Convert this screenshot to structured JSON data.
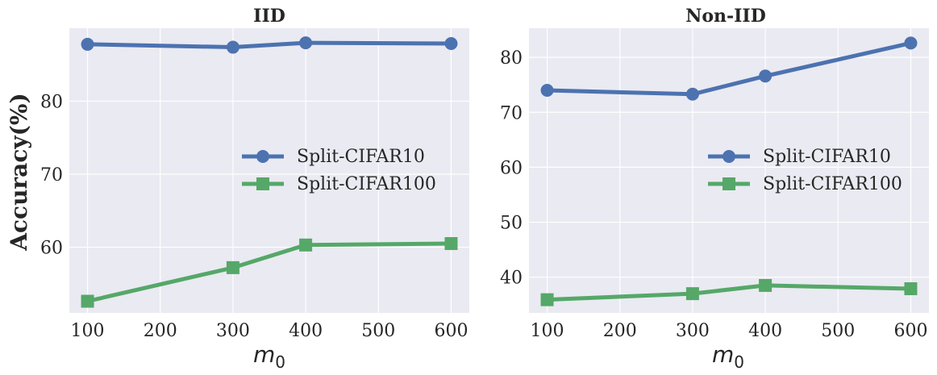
{
  "chart_data": [
    {
      "type": "line",
      "title": "IID",
      "xlabel": "m",
      "xlabel_sub": "0",
      "ylabel": "Accuracy(%)",
      "xlim": [
        75,
        625
      ],
      "ylim": [
        51,
        90
      ],
      "xticks": [
        100,
        200,
        300,
        400,
        500,
        600
      ],
      "yticks": [
        60,
        70,
        80
      ],
      "legend_position": "center-right",
      "series": [
        {
          "name": "Split-CIFAR10",
          "color": "#4C72B0",
          "marker": "circle",
          "x": [
            100,
            300,
            400,
            600
          ],
          "y": [
            87.8,
            87.4,
            88.0,
            87.9
          ]
        },
        {
          "name": "Split-CIFAR100",
          "color": "#55A868",
          "marker": "square",
          "x": [
            100,
            300,
            400,
            600
          ],
          "y": [
            52.6,
            57.2,
            60.3,
            60.5
          ]
        }
      ]
    },
    {
      "type": "line",
      "title": "Non-IID",
      "xlabel": "m",
      "xlabel_sub": "0",
      "ylabel": "",
      "xlim": [
        75,
        625
      ],
      "ylim": [
        33.5,
        85.3
      ],
      "xticks": [
        100,
        200,
        300,
        400,
        500,
        600
      ],
      "yticks": [
        40,
        50,
        60,
        70,
        80
      ],
      "legend_position": "center-right",
      "series": [
        {
          "name": "Split-CIFAR10",
          "color": "#4C72B0",
          "marker": "circle",
          "x": [
            100,
            300,
            400,
            600
          ],
          "y": [
            74.0,
            73.3,
            76.6,
            82.6
          ]
        },
        {
          "name": "Split-CIFAR100",
          "color": "#55A868",
          "marker": "square",
          "x": [
            100,
            300,
            400,
            600
          ],
          "y": [
            35.9,
            37.0,
            38.5,
            37.9
          ]
        }
      ]
    }
  ]
}
